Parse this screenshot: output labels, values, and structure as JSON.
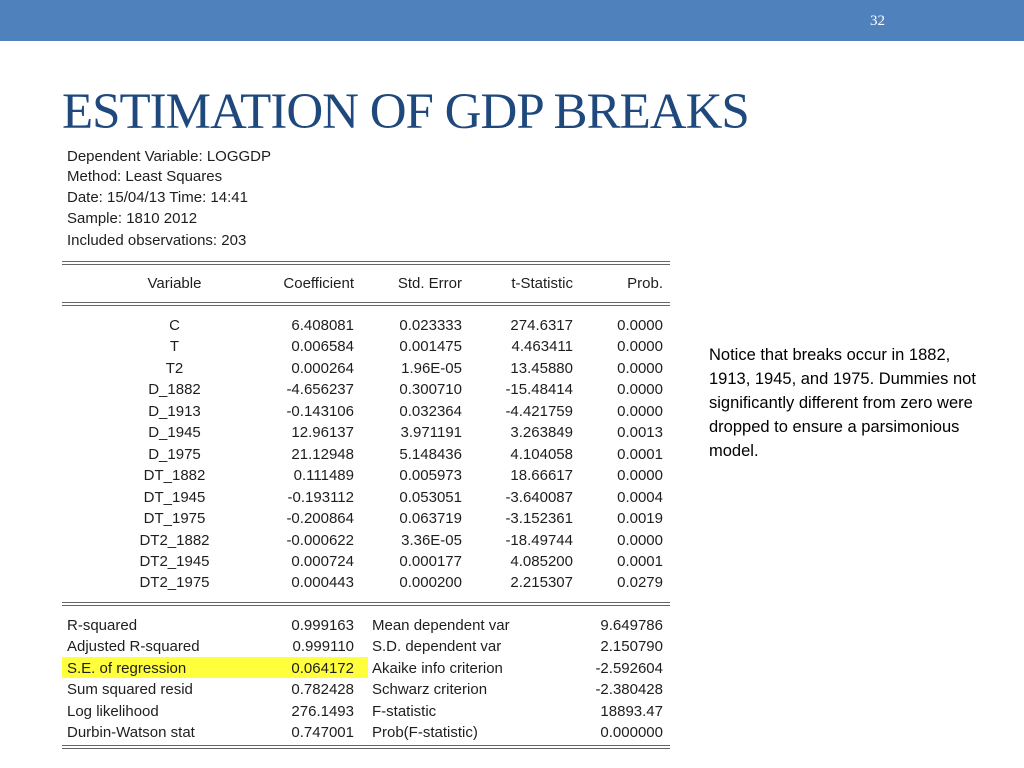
{
  "slide": {
    "number": "32",
    "title": "ESTIMATION OF GDP BREAKS"
  },
  "output": {
    "header": [
      "Dependent Variable: LOGGDP",
      "Method: Least Squares",
      "Date: 15/04/13   Time: 14:41",
      "Sample: 1810 2012",
      "Included observations: 203"
    ],
    "columns": [
      "Variable",
      "Coefficient",
      "Std. Error",
      "t-Statistic",
      "Prob."
    ],
    "rows": [
      [
        "C",
        "6.408081",
        "0.023333",
        "274.6317",
        "0.0000"
      ],
      [
        "T",
        "0.006584",
        "0.001475",
        "4.463411",
        "0.0000"
      ],
      [
        "T2",
        "0.000264",
        "1.96E-05",
        "13.45880",
        "0.0000"
      ],
      [
        "D_1882",
        "-4.656237",
        "0.300710",
        "-15.48414",
        "0.0000"
      ],
      [
        "D_1913",
        "-0.143106",
        "0.032364",
        "-4.421759",
        "0.0000"
      ],
      [
        "D_1945",
        "12.96137",
        "3.971191",
        "3.263849",
        "0.0013"
      ],
      [
        "D_1975",
        "21.12948",
        "5.148436",
        "4.104058",
        "0.0001"
      ],
      [
        "DT_1882",
        "0.111489",
        "0.005973",
        "18.66617",
        "0.0000"
      ],
      [
        "DT_1945",
        "-0.193112",
        "0.053051",
        "-3.640087",
        "0.0004"
      ],
      [
        "DT_1975",
        "-0.200864",
        "0.063719",
        "-3.152361",
        "0.0019"
      ],
      [
        "DT2_1882",
        "-0.000622",
        "3.36E-05",
        "-18.49744",
        "0.0000"
      ],
      [
        "DT2_1945",
        "0.000724",
        "0.000177",
        "4.085200",
        "0.0001"
      ],
      [
        "DT2_1975",
        "0.000443",
        "0.000200",
        "2.215307",
        "0.0279"
      ]
    ],
    "stats": [
      [
        "R-squared",
        "0.999163",
        "Mean dependent var",
        "9.649786"
      ],
      [
        "Adjusted R-squared",
        "0.999110",
        "S.D. dependent var",
        "2.150790"
      ],
      [
        "S.E. of regression",
        "0.064172",
        "Akaike info criterion",
        "-2.592604"
      ],
      [
        "Sum squared resid",
        "0.782428",
        "Schwarz criterion",
        "-2.380428"
      ],
      [
        "Log likelihood",
        "276.1493",
        "F-statistic",
        "18893.47"
      ],
      [
        "Durbin-Watson stat",
        "0.747001",
        "Prob(F-statistic)",
        "0.000000"
      ]
    ],
    "highlight_color": "#ffff3c"
  },
  "note": "Notice that breaks occur in 1882, 1913, 1945, and 1975. Dummies not significantly different from zero were dropped to ensure a parsimonious model."
}
